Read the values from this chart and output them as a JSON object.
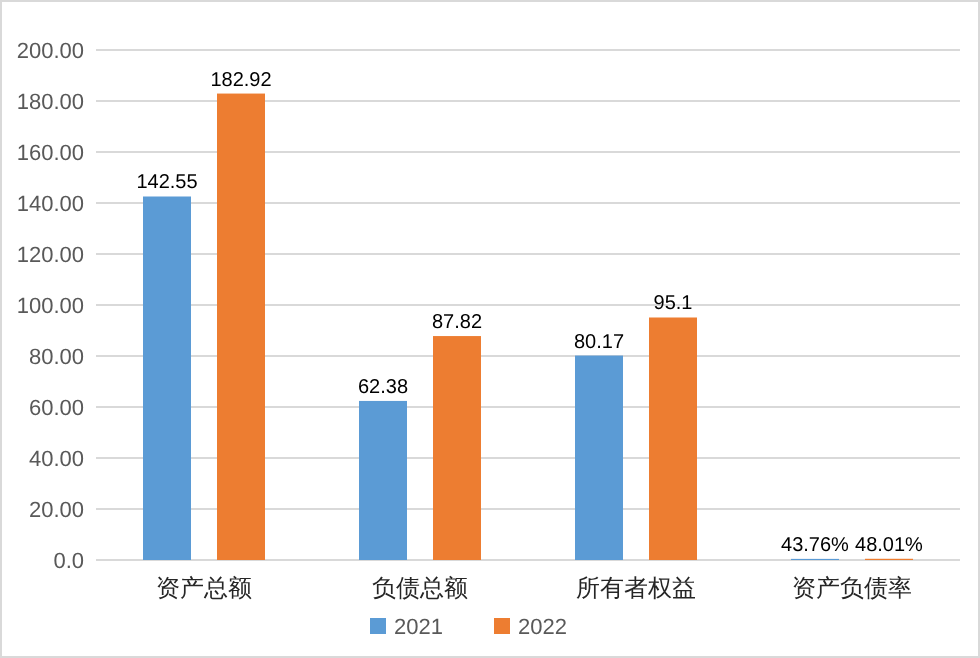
{
  "chart_data": {
    "type": "bar",
    "categories": [
      "资产总额",
      "负债总额",
      "所有者权益",
      "资产负债率"
    ],
    "series": [
      {
        "name": "2021",
        "color": "#5b9bd5",
        "values": [
          142.55,
          62.38,
          80.17,
          0.4376
        ],
        "value_labels": [
          "142.55",
          "62.38",
          "80.17",
          "43.76%"
        ]
      },
      {
        "name": "2022",
        "color": "#ed7d31",
        "values": [
          182.92,
          87.82,
          95.1,
          0.4801
        ],
        "value_labels": [
          "182.92",
          "87.82",
          "95.1",
          "48.01%"
        ]
      }
    ],
    "ylim": [
      0,
      200
    ],
    "yticks": [
      {
        "value": 0,
        "label": "0.0"
      },
      {
        "value": 20,
        "label": "20.00"
      },
      {
        "value": 40,
        "label": "40.00"
      },
      {
        "value": 60,
        "label": "60.00"
      },
      {
        "value": 80,
        "label": "80.00"
      },
      {
        "value": 100,
        "label": "100.00"
      },
      {
        "value": 120,
        "label": "120.00"
      },
      {
        "value": 140,
        "label": "140.00"
      },
      {
        "value": 160,
        "label": "160.00"
      },
      {
        "value": 180,
        "label": "180.00"
      },
      {
        "value": 200,
        "label": "200.00"
      }
    ],
    "grid": "y",
    "legend": "bottom"
  }
}
